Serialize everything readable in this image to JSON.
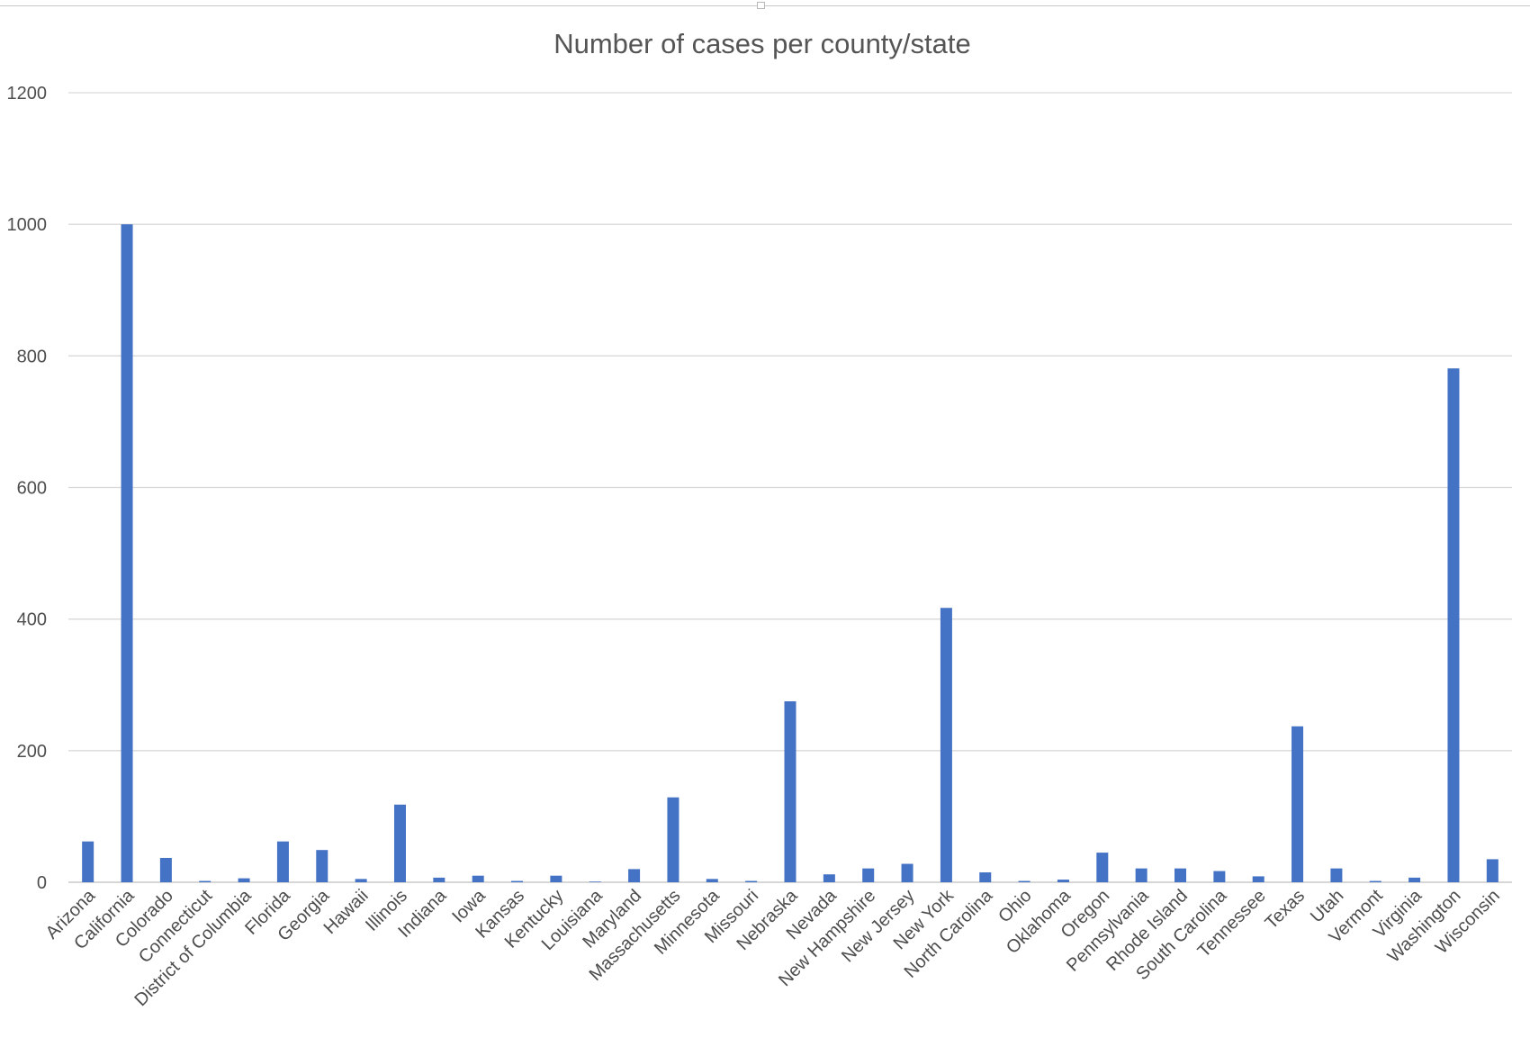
{
  "chart_data": {
    "type": "bar",
    "title": "Number of cases per county/state",
    "xlabel": "",
    "ylabel": "",
    "ylim": [
      0,
      1200
    ],
    "yticks": [
      0,
      200,
      400,
      600,
      800,
      1000,
      1200
    ],
    "grid": true,
    "legend": "none",
    "bar_color": "#4472C4",
    "categories": [
      "Arizona",
      "California",
      "Colorado",
      "Connecticut",
      "District of Columbia",
      "Florida",
      "Georgia",
      "Hawaii",
      "Illinois",
      "Indiana",
      "Iowa",
      "Kansas",
      "Kentucky",
      "Louisiana",
      "Maryland",
      "Massachusetts",
      "Minnesota",
      "Missouri",
      "Nebraska",
      "Nevada",
      "New Hampshire",
      "New Jersey",
      "New York",
      "North Carolina",
      "Ohio",
      "Oklahoma",
      "Oregon",
      "Pennsylvania",
      "Rhode Island",
      "South Carolina",
      "Tennessee",
      "Texas",
      "Utah",
      "Vermont",
      "Virginia",
      "Washington",
      "Wisconsin"
    ],
    "values": [
      62,
      1000,
      37,
      2,
      6,
      62,
      49,
      5,
      118,
      7,
      10,
      2,
      10,
      1,
      20,
      129,
      5,
      2,
      275,
      12,
      21,
      28,
      417,
      15,
      2,
      4,
      45,
      21,
      21,
      17,
      9,
      237,
      21,
      2,
      7,
      781,
      35
    ]
  }
}
